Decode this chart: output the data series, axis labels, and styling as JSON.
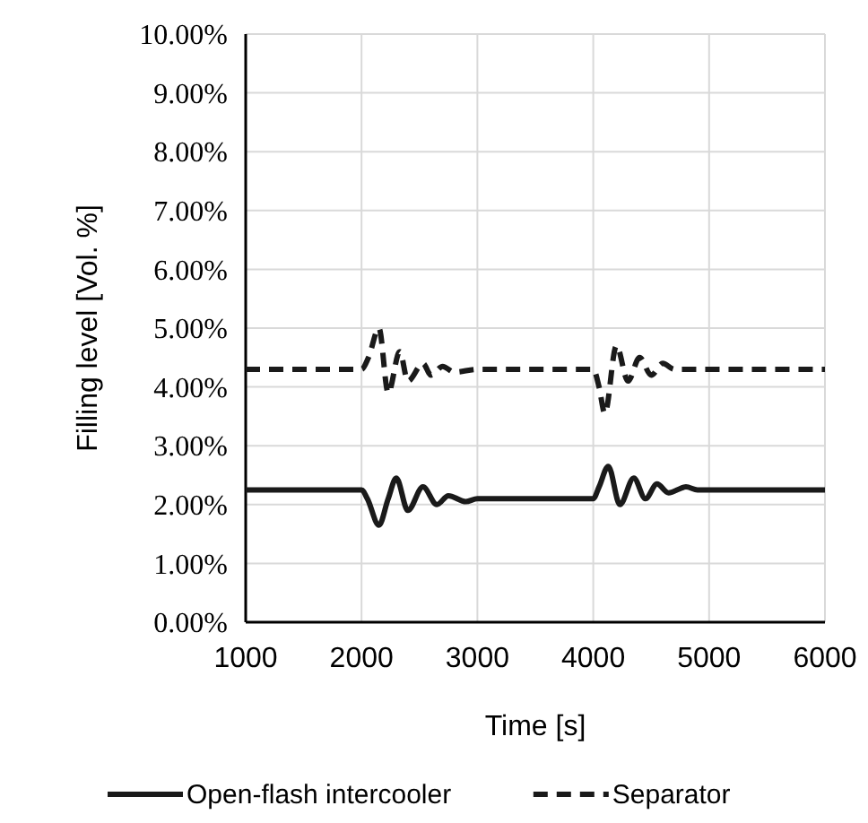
{
  "chart_data": {
    "type": "line",
    "xlabel": "Time [s]",
    "ylabel": "Filling level [Vol. %]",
    "xlim": [
      1000,
      6000
    ],
    "xticks": [
      1000,
      2000,
      3000,
      4000,
      5000,
      6000
    ],
    "ylim": [
      0,
      0.1
    ],
    "yticks": [
      {
        "value": 0,
        "label": "0.00%"
      },
      {
        "value": 0.01,
        "label": "1.00%"
      },
      {
        "value": 0.02,
        "label": "2.00%"
      },
      {
        "value": 0.03,
        "label": "3.00%"
      },
      {
        "value": 0.04,
        "label": "4.00%"
      },
      {
        "value": 0.05,
        "label": "5.00%"
      },
      {
        "value": 0.06,
        "label": "6.00%"
      },
      {
        "value": 0.07,
        "label": "7.00%"
      },
      {
        "value": 0.08,
        "label": "8.00%"
      },
      {
        "value": 0.09,
        "label": "9.00%"
      },
      {
        "value": 0.1,
        "label": "10.00%"
      }
    ],
    "grid": true,
    "legend": "bottom",
    "marker": "none",
    "series": [
      {
        "name": "Open-flash intercooler",
        "color": "#1a1a1a",
        "line_style": "solid",
        "x": [
          1000,
          2000,
          2050,
          2150,
          2230,
          2300,
          2400,
          2530,
          2650,
          2750,
          2900,
          3000,
          4000,
          4050,
          4130,
          4230,
          4350,
          4450,
          4550,
          4650,
          4800,
          4900,
          6000
        ],
        "values": [
          0.0225,
          0.0225,
          0.021,
          0.0165,
          0.021,
          0.0245,
          0.019,
          0.023,
          0.02,
          0.0215,
          0.0205,
          0.021,
          0.021,
          0.023,
          0.0265,
          0.02,
          0.0245,
          0.021,
          0.0235,
          0.022,
          0.023,
          0.0225,
          0.0225
        ]
      },
      {
        "name": "Separator",
        "color": "#1a1a1a",
        "line_style": "dashed",
        "x": [
          1000,
          2000,
          2060,
          2150,
          2230,
          2330,
          2400,
          2530,
          2600,
          2700,
          2800,
          3000,
          4000,
          4050,
          4100,
          4200,
          4300,
          4400,
          4500,
          4600,
          4700,
          6000
        ],
        "values": [
          0.043,
          0.043,
          0.045,
          0.05,
          0.039,
          0.046,
          0.041,
          0.044,
          0.042,
          0.0435,
          0.0425,
          0.043,
          0.043,
          0.04,
          0.0355,
          0.047,
          0.041,
          0.045,
          0.042,
          0.044,
          0.043,
          0.043
        ]
      }
    ]
  }
}
